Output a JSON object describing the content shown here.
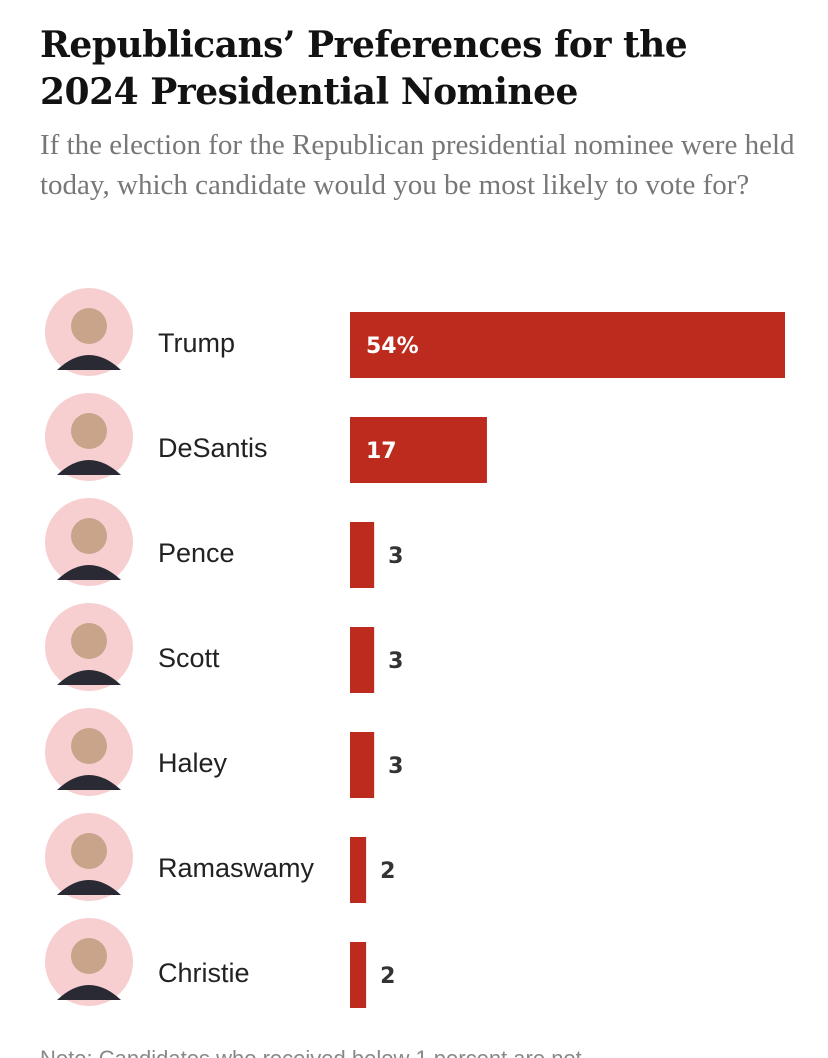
{
  "chart_data": {
    "type": "bar",
    "orientation": "horizontal",
    "title": "Republicans’ Preferences for the 2024 Presidential Nominee",
    "subtitle": "If the election for the Republican presidential nominee were held today, which candidate would you be most likely to vote for?",
    "categories": [
      "Trump",
      "DeSantis",
      "Pence",
      "Scott",
      "Haley",
      "Ramaswamy",
      "Christie"
    ],
    "values": [
      54,
      17,
      3,
      3,
      3,
      2,
      2
    ],
    "value_labels": [
      "54%",
      "17",
      "3",
      "3",
      "3",
      "2",
      "2"
    ],
    "color": "#bd2a1e",
    "note": "Note: Candidates who received below 1 percent are not"
  }
}
